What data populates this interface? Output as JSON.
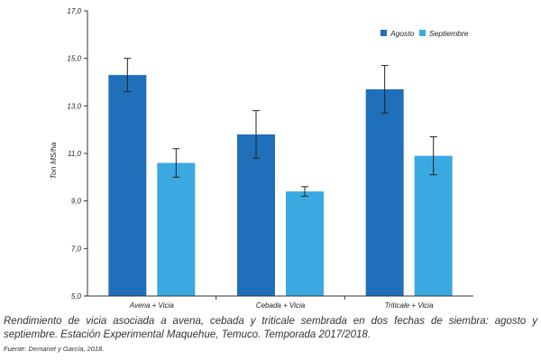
{
  "chart_data": {
    "type": "bar",
    "categories": [
      "Avena + Vicia",
      "Cebada + Vicia",
      "Triticale + Vicia"
    ],
    "series": [
      {
        "name": "Agosto",
        "color": "#1f6fba",
        "values": [
          14.3,
          11.8,
          13.7
        ],
        "error": [
          0.7,
          1.0,
          1.0
        ]
      },
      {
        "name": "Septiembre",
        "color": "#3aa9e1",
        "values": [
          10.6,
          9.4,
          10.9
        ],
        "error": [
          0.6,
          0.2,
          0.8
        ]
      }
    ],
    "ylabel": "Ton MS/ha",
    "ylim": [
      5.0,
      17.0
    ],
    "yticks": [
      "5,0",
      "7,0",
      "9,0",
      "11,0",
      "13,0",
      "15,0",
      "17,0"
    ],
    "legend_position": "top-right",
    "grid": false
  },
  "caption": "Rendimiento de vicia asociada a avena, cebada y triticale sembrada en dos fechas de siembra: agosto y septiembre. Estación Experimental Maquehue, Temuco. Temporada 2017/2018.",
  "source": "Fuente: Demanet y García, 2018."
}
